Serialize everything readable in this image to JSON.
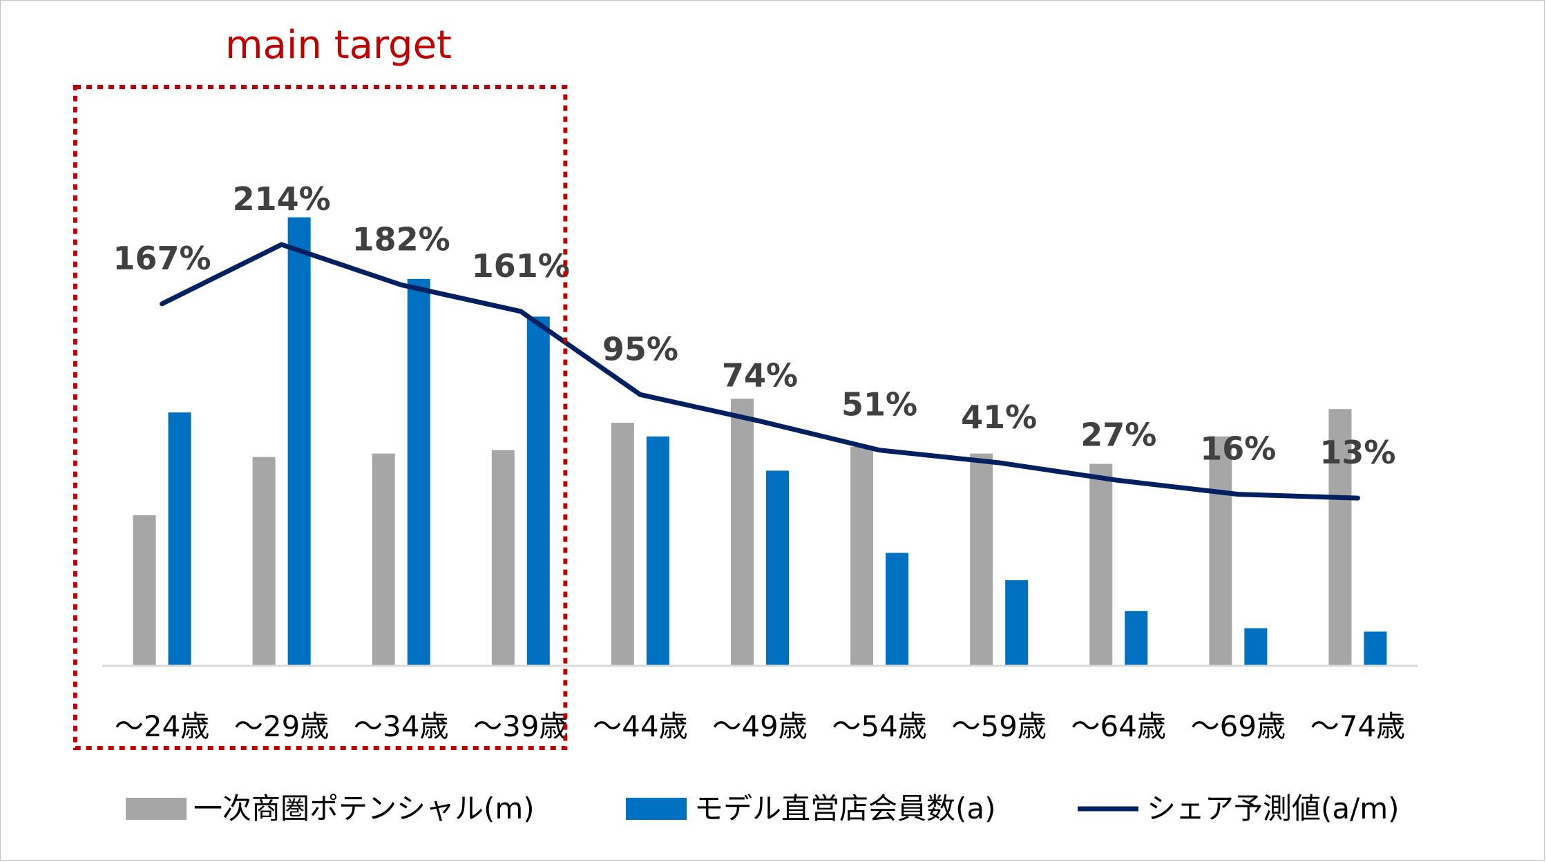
{
  "annotation": {
    "label": "main target",
    "color": "#c00000",
    "from_category": 0,
    "to_category": 3
  },
  "chart_data": {
    "type": "bar",
    "categories": [
      "～24歳",
      "～29歳",
      "～34歳",
      "～39歳",
      "～44歳",
      "～49歳",
      "～54歳",
      "～59歳",
      "～64歳",
      "～69歳",
      "～74歳"
    ],
    "series": [
      {
        "name": "一次商圏ポテンシャル(m)",
        "type": "bar",
        "color": "#a6a6a6",
        "values": [
          22,
          30.5,
          31,
          31.5,
          35.5,
          39,
          32,
          31,
          29.5,
          33.5,
          37.5
        ]
      },
      {
        "name": "モデル直営店会員数(a)",
        "type": "bar",
        "color": "#0070c0",
        "values": [
          37,
          65.5,
          56.5,
          51,
          33.5,
          28.5,
          16.5,
          12.5,
          8,
          5.5,
          5
        ]
      },
      {
        "name": "シェア予測値(a/m)",
        "type": "line",
        "color": "#002060",
        "values": [
          167,
          214,
          182,
          161,
          95,
          74,
          51,
          41,
          27,
          16,
          13
        ],
        "labels": [
          "167%",
          "214%",
          "182%",
          "161%",
          "95%",
          "74%",
          "51%",
          "41%",
          "27%",
          "16%",
          "13%"
        ]
      }
    ],
    "bar_ylim": [
      0,
      70
    ],
    "line_ylim": [
      -120,
      260
    ],
    "legend_position": "bottom",
    "grid": false
  }
}
